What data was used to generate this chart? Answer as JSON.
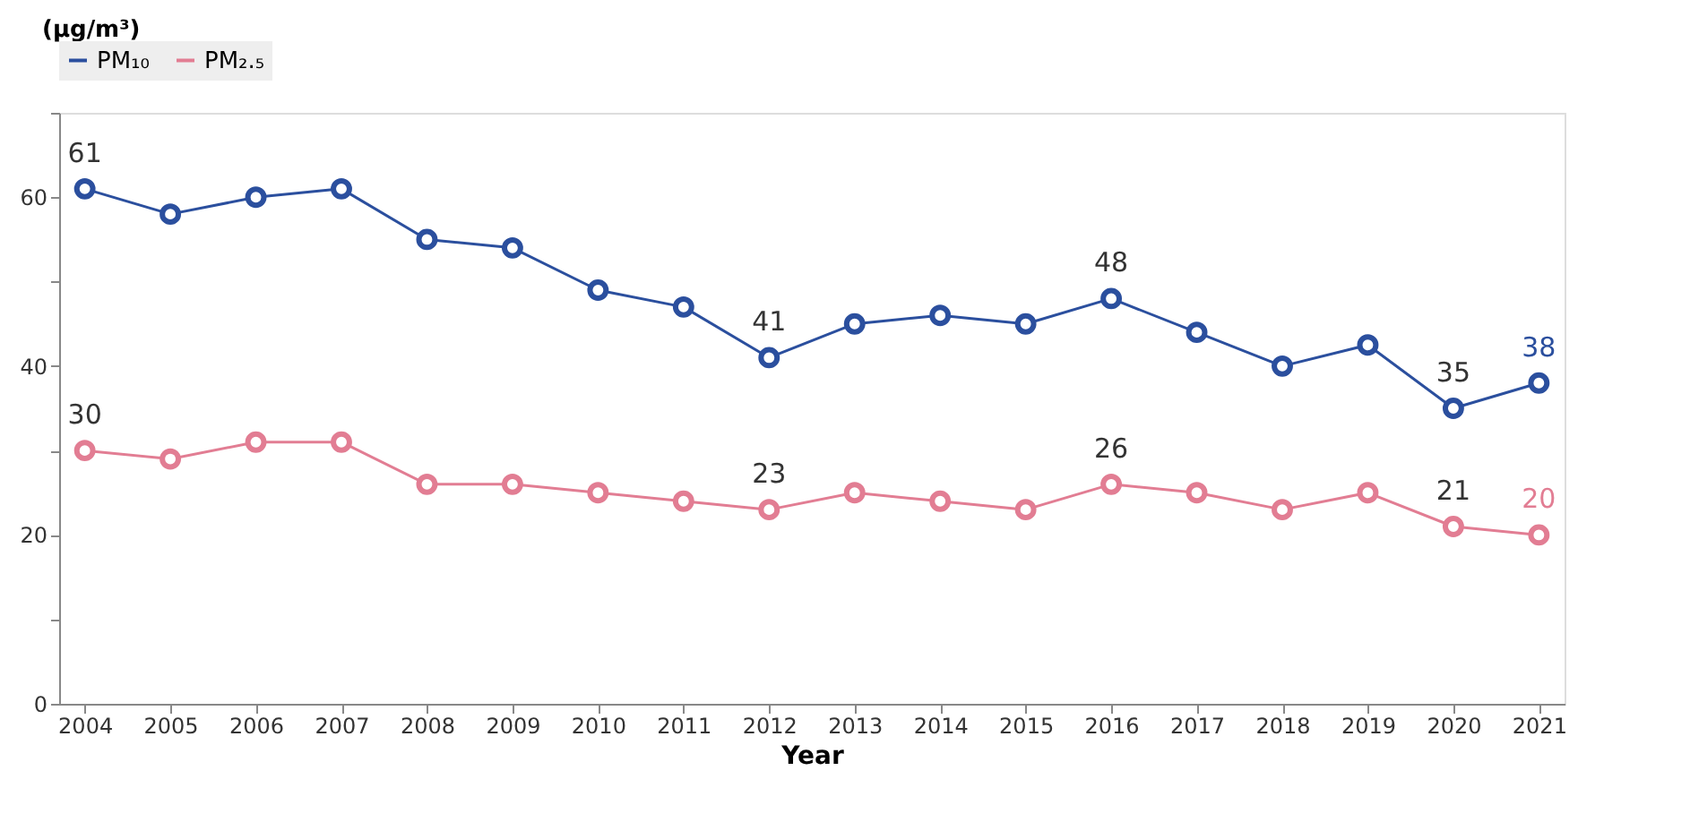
{
  "chart_data": {
    "type": "line",
    "xlabel": "Year",
    "ylabel": "(μg/m³)",
    "categories": [
      "2004",
      "2005",
      "2006",
      "2007",
      "2008",
      "2009",
      "2010",
      "2011",
      "2012",
      "2013",
      "2014",
      "2015",
      "2016",
      "2017",
      "2018",
      "2019",
      "2020",
      "2021"
    ],
    "series": [
      {
        "name": "PM₁₀",
        "color": "#2b4f9e",
        "values": [
          61,
          58,
          60,
          61,
          55,
          54,
          49,
          47,
          41,
          45,
          46,
          45,
          48,
          44,
          40,
          42.5,
          35,
          38
        ],
        "value_labels": [
          "61",
          null,
          null,
          null,
          null,
          null,
          null,
          null,
          "41",
          null,
          null,
          null,
          "48",
          null,
          null,
          null,
          "35",
          "38"
        ]
      },
      {
        "name": "PM₂.₅",
        "color": "#e27d93",
        "values": [
          30,
          29,
          31,
          31,
          26,
          26,
          25,
          24,
          23,
          25,
          24,
          23,
          26,
          25,
          23,
          25,
          21,
          20
        ],
        "value_labels": [
          "30",
          null,
          null,
          null,
          null,
          null,
          null,
          null,
          "23",
          null,
          null,
          null,
          "26",
          null,
          null,
          null,
          "21",
          "20"
        ]
      }
    ],
    "ylim": [
      0,
      70
    ],
    "yticks": [
      0,
      {
        "value": 10,
        "label": null
      },
      20,
      {
        "value": 30,
        "label": null
      },
      40,
      {
        "value": 50,
        "label": null
      },
      60,
      {
        "value": 70,
        "label": null
      }
    ],
    "grid": false,
    "legend": "top",
    "marker": "circle",
    "line_style": "solid"
  }
}
